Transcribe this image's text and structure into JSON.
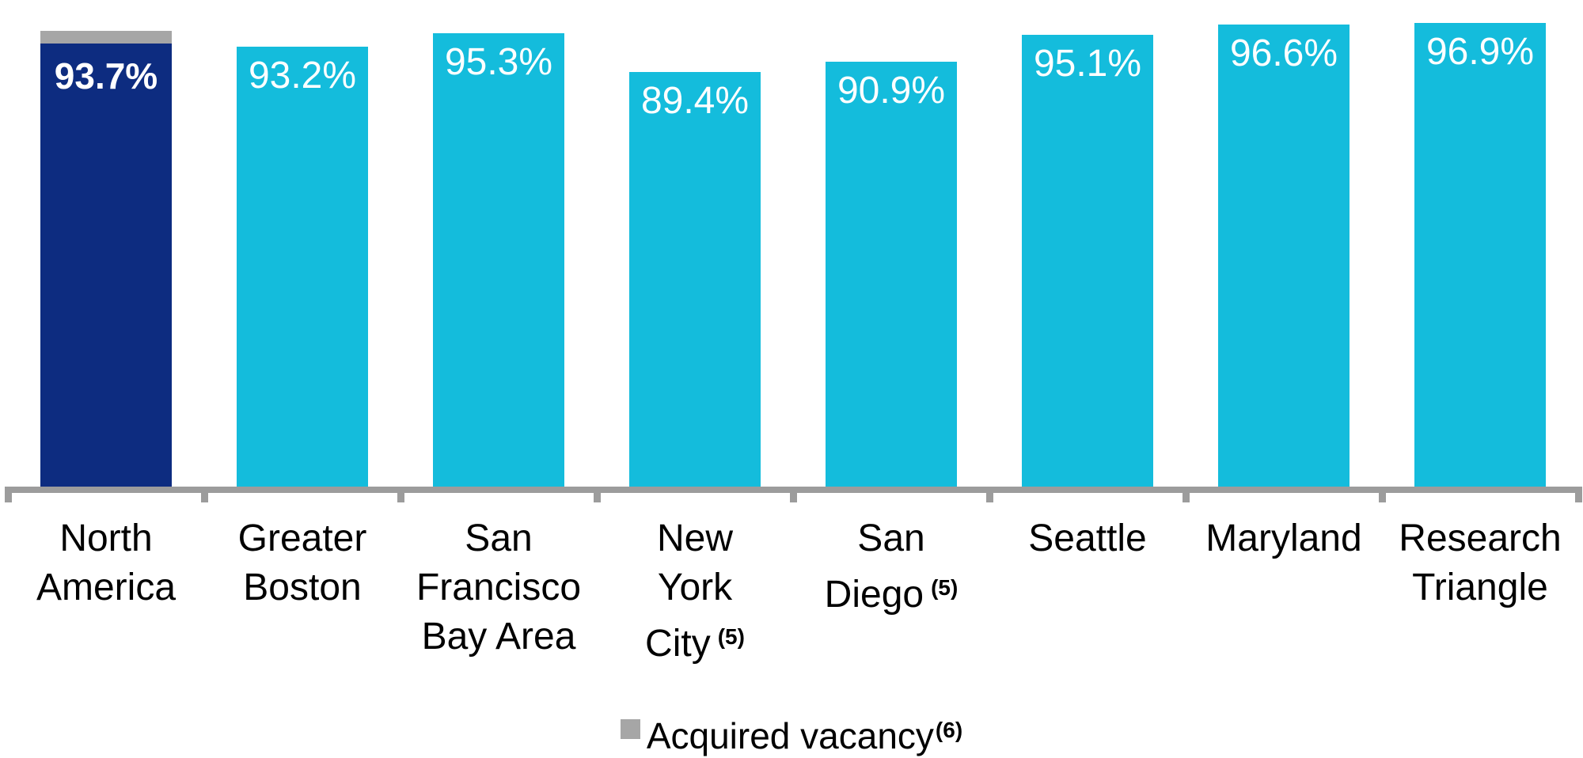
{
  "chart_data": {
    "type": "bar",
    "title": "",
    "unit": "%",
    "grid": false,
    "categories": [
      "North America",
      "Greater Boston",
      "San Francisco Bay Area",
      "New York City",
      "San Diego",
      "Seattle",
      "Maryland",
      "Research Triangle"
    ],
    "category_label_lines": [
      [
        "North",
        "America"
      ],
      [
        "Greater",
        "Boston"
      ],
      [
        "San",
        "Francisco",
        "Bay Area"
      ],
      [
        "New",
        "York",
        "City"
      ],
      [
        "San",
        "Diego"
      ],
      [
        "Seattle"
      ],
      [
        "Maryland"
      ],
      [
        "Research",
        "Triangle"
      ]
    ],
    "category_footnotes": [
      "",
      "",
      "",
      "(5)",
      "(5)",
      "",
      "",
      ""
    ],
    "series": [
      {
        "name": "main",
        "values": [
          93.7,
          93.2,
          95.3,
          89.4,
          90.9,
          95.1,
          96.6,
          96.9
        ],
        "labels": [
          "93.7%",
          "93.2%",
          "95.3%",
          "89.4%",
          "90.9%",
          "95.1%",
          "96.6%",
          "96.9%"
        ]
      }
    ],
    "highlight_index": 0,
    "acquired_vacancy": {
      "bar_index": 0,
      "value_shown": false
    },
    "legend": {
      "label": "Acquired vacancy",
      "footnote": "(6)",
      "swatch": "gray-square",
      "position": "bottom-center"
    },
    "axis": {
      "y_axis_visible": false,
      "implied_baseline_value": 26,
      "x_axis_ticks": "category-boundaries"
    },
    "colors": {
      "default_bar": "#14BCDC",
      "highlight_bar": "#0D2C80",
      "acquired_vacancy": "#A6A6A6",
      "axis_line": "#9C9C9C",
      "value_label_text": "#FFFFFF",
      "category_label_text": "#000000"
    }
  }
}
